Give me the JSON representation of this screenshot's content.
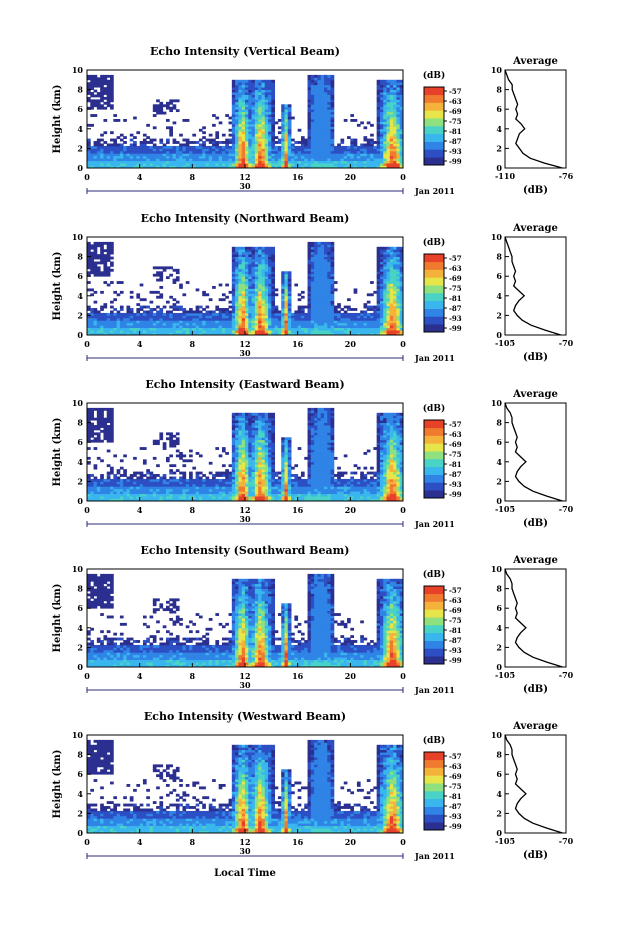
{
  "colors": {
    "colormap": [
      "#2b2f8f",
      "#2d4fc4",
      "#2f84e6",
      "#3ab6ee",
      "#49d3c6",
      "#8fe07f",
      "#e6e64a",
      "#f5b23a",
      "#f07a2e",
      "#e8412a"
    ],
    "axis": "#000000"
  },
  "chart_data": [
    {
      "type": "heatmap",
      "title": "Echo Intensity (Vertical Beam)",
      "ylabel": "Height (km)",
      "ylim": [
        0,
        10
      ],
      "yticks": [
        "0",
        "2",
        "4",
        "6",
        "8",
        "10"
      ],
      "xticks": [
        "0",
        "4",
        "8",
        "12",
        "16",
        "20",
        "0"
      ],
      "date_mark": "30",
      "date_label": "Jan 2011",
      "colorbar": {
        "unit": "(dB)",
        "ticks": [
          "-57",
          "-63",
          "-69",
          "-75",
          "-81",
          "-87",
          "-93",
          "-99"
        ]
      },
      "profile": {
        "title": "Average",
        "xlabel": "(dB)",
        "xticks": [
          "-110",
          "-76"
        ],
        "xlim": [
          -110,
          -76
        ],
        "yticks": [
          "0",
          "2",
          "4",
          "6",
          "8",
          "10"
        ],
        "height": [
          0,
          0.5,
          1,
          1.5,
          2,
          2.5,
          3,
          3.5,
          4,
          4.5,
          5,
          5.5,
          6,
          6.5,
          7,
          7.5,
          8,
          8.5,
          9,
          9.5,
          10
        ],
        "db": [
          -78,
          -88,
          -96,
          -100,
          -102,
          -104,
          -103,
          -102,
          -99,
          -101,
          -104,
          -103,
          -104,
          -103,
          -104,
          -105,
          -106,
          -106,
          -108,
          -109,
          -110
        ]
      }
    },
    {
      "type": "heatmap",
      "title": "Echo Intensity (Northward Beam)",
      "ylabel": "Height (km)",
      "ylim": [
        0,
        10
      ],
      "yticks": [
        "0",
        "2",
        "4",
        "6",
        "8",
        "10"
      ],
      "xticks": [
        "0",
        "4",
        "8",
        "12",
        "16",
        "20",
        "0"
      ],
      "date_mark": "30",
      "date_label": "Jan 2011",
      "colorbar": {
        "unit": "(dB)",
        "ticks": [
          "-57",
          "-63",
          "-69",
          "-75",
          "-81",
          "-87",
          "-93",
          "-99"
        ]
      },
      "profile": {
        "title": "Average",
        "xlabel": "(dB)",
        "xticks": [
          "-105",
          "-70"
        ],
        "xlim": [
          -105,
          -70
        ],
        "yticks": [
          "0",
          "2",
          "4",
          "6",
          "8",
          "10"
        ],
        "height": [
          0,
          0.5,
          1,
          1.5,
          2,
          2.5,
          3,
          3.5,
          4,
          4.5,
          5,
          5.5,
          6,
          6.5,
          7,
          7.5,
          8,
          8.5,
          9,
          9.5,
          10
        ],
        "db": [
          -73,
          -82,
          -90,
          -95,
          -98,
          -100,
          -99,
          -97,
          -94,
          -97,
          -100,
          -99,
          -100,
          -99,
          -100,
          -101,
          -101,
          -102,
          -103,
          -104,
          -105
        ]
      }
    },
    {
      "type": "heatmap",
      "title": "Echo Intensity (Eastward Beam)",
      "ylabel": "Height (km)",
      "ylim": [
        0,
        10
      ],
      "yticks": [
        "0",
        "2",
        "4",
        "6",
        "8",
        "10"
      ],
      "xticks": [
        "0",
        "4",
        "8",
        "12",
        "16",
        "20",
        "0"
      ],
      "date_mark": "30",
      "date_label": "Jan 2011",
      "colorbar": {
        "unit": "(dB)",
        "ticks": [
          "-57",
          "-63",
          "-69",
          "-75",
          "-81",
          "-87",
          "-93",
          "-99"
        ]
      },
      "profile": {
        "title": "Average",
        "xlabel": "(dB)",
        "xticks": [
          "-105",
          "-70"
        ],
        "xlim": [
          -105,
          -70
        ],
        "yticks": [
          "0",
          "2",
          "4",
          "6",
          "8",
          "10"
        ],
        "height": [
          0,
          0.5,
          1,
          1.5,
          2,
          2.5,
          3,
          3.5,
          4,
          4.5,
          5,
          5.5,
          6,
          6.5,
          7,
          7.5,
          8,
          8.5,
          9,
          9.5,
          10
        ],
        "db": [
          -72,
          -81,
          -89,
          -94,
          -97,
          -99,
          -98,
          -96,
          -93,
          -96,
          -99,
          -98,
          -99,
          -98,
          -99,
          -100,
          -101,
          -101,
          -102,
          -104,
          -105
        ]
      }
    },
    {
      "type": "heatmap",
      "title": "Echo Intensity (Southward Beam)",
      "ylabel": "Height (km)",
      "ylim": [
        0,
        10
      ],
      "yticks": [
        "0",
        "2",
        "4",
        "6",
        "8",
        "10"
      ],
      "xticks": [
        "0",
        "4",
        "8",
        "12",
        "16",
        "20",
        "0"
      ],
      "date_mark": "30",
      "date_label": "Jan 2011",
      "colorbar": {
        "unit": "(dB)",
        "ticks": [
          "-57",
          "-63",
          "-69",
          "-75",
          "-81",
          "-87",
          "-93",
          "-99"
        ]
      },
      "profile": {
        "title": "Average",
        "xlabel": "(dB)",
        "xticks": [
          "-105",
          "-70"
        ],
        "xlim": [
          -105,
          -70
        ],
        "yticks": [
          "0",
          "2",
          "4",
          "6",
          "8",
          "10"
        ],
        "height": [
          0,
          0.5,
          1,
          1.5,
          2,
          2.5,
          3,
          3.5,
          4,
          4.5,
          5,
          5.5,
          6,
          6.5,
          7,
          7.5,
          8,
          8.5,
          9,
          9.5,
          10
        ],
        "db": [
          -72,
          -81,
          -89,
          -94,
          -97,
          -99,
          -98,
          -96,
          -93,
          -96,
          -99,
          -98,
          -99,
          -98,
          -99,
          -100,
          -101,
          -101,
          -102,
          -104,
          -105
        ]
      }
    },
    {
      "type": "heatmap",
      "title": "Echo Intensity (Westward Beam)",
      "ylabel": "Height (km)",
      "ylim": [
        0,
        10
      ],
      "yticks": [
        "0",
        "2",
        "4",
        "6",
        "8",
        "10"
      ],
      "xticks": [
        "0",
        "4",
        "8",
        "12",
        "16",
        "20",
        "0"
      ],
      "date_mark": "30",
      "date_label": "Jan 2011",
      "xlabel": "Local Time",
      "colorbar": {
        "unit": "(dB)",
        "ticks": [
          "-57",
          "-63",
          "-69",
          "-75",
          "-81",
          "-87",
          "-93",
          "-99"
        ]
      },
      "profile": {
        "title": "Average",
        "xlabel": "(dB)",
        "xticks": [
          "-105",
          "-70"
        ],
        "xlim": [
          -105,
          -70
        ],
        "yticks": [
          "0",
          "2",
          "4",
          "6",
          "8",
          "10"
        ],
        "height": [
          0,
          0.5,
          1,
          1.5,
          2,
          2.5,
          3,
          3.5,
          4,
          4.5,
          5,
          5.5,
          6,
          6.5,
          7,
          7.5,
          8,
          8.5,
          9,
          9.5,
          10
        ],
        "db": [
          -72,
          -81,
          -89,
          -94,
          -97,
          -99,
          -98,
          -96,
          -93,
          -96,
          -99,
          -98,
          -99,
          -98,
          -99,
          -100,
          -101,
          -101,
          -102,
          -104,
          -105
        ]
      }
    }
  ]
}
